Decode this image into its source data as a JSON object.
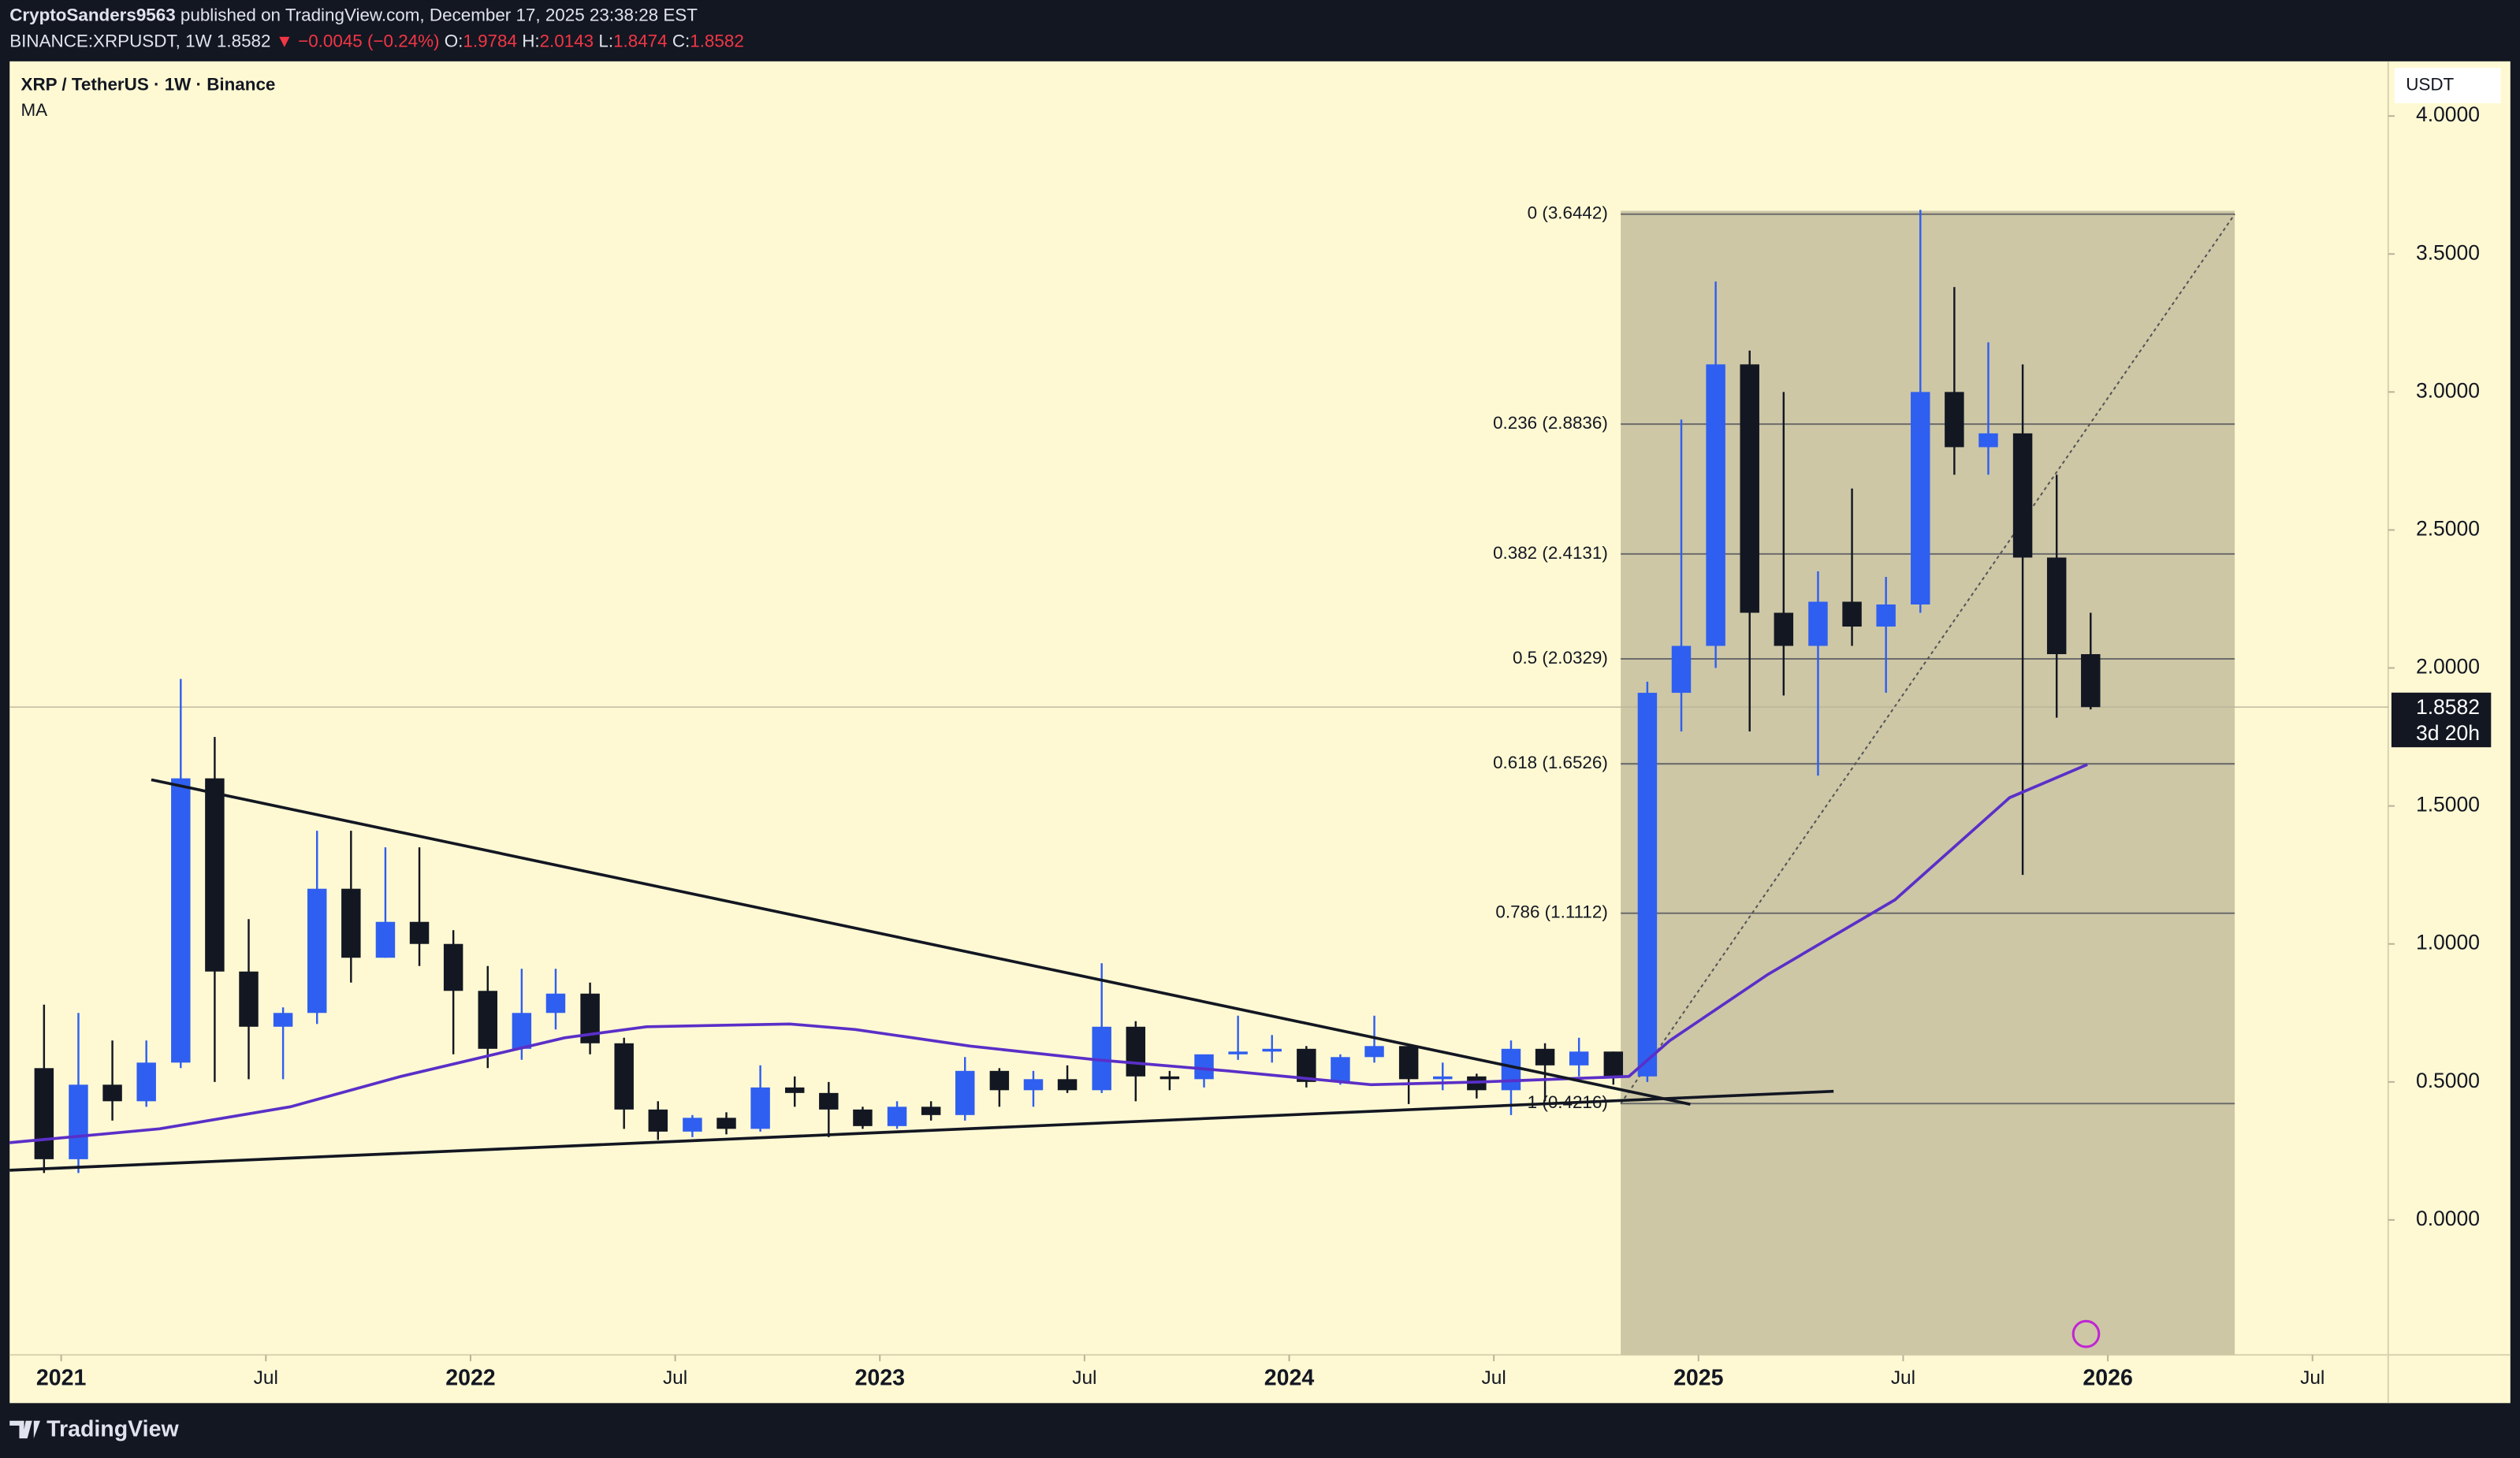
{
  "header": {
    "publisher": "CryptoSanders9563",
    "published": "published on TradingView.com, December 17, 2025 23:38:28 EST",
    "symbol": "BINANCE:XRPUSDT, 1W",
    "last": "1.8582",
    "direction": "▼",
    "change": "−0.0045 (−0.24%)",
    "o_label": "O:",
    "open": "1.9784",
    "h_label": "H:",
    "high": "2.0143",
    "l_label": "L:",
    "low": "1.8474",
    "c_label": "C:",
    "close": "1.8582"
  },
  "footer": {
    "brand": "TradingView"
  },
  "chart_data": {
    "type": "candlestick",
    "title": "XRP / TetherUS · 1W · Binance",
    "indicator": "MA",
    "currency": "USDT",
    "colors": {
      "up": "#2f5ff0",
      "down": "#131722",
      "ma": "#5a2fc8"
    },
    "xlim": [
      2020.874,
      2026.685
    ],
    "xticks": [
      2021,
      {
        "value": 2021.5,
        "label": "Jul"
      },
      2022,
      {
        "value": 2022.5,
        "label": "Jul"
      },
      2023,
      {
        "value": 2023.5,
        "label": "Jul"
      },
      2024,
      {
        "value": 2024.5,
        "label": "Jul"
      },
      2025,
      {
        "value": 2025.5,
        "label": "Jul"
      },
      2026,
      {
        "value": 2026.5,
        "label": "Jul"
      }
    ],
    "ylim": [
      -0.489,
      4.198
    ],
    "yticks": [
      {
        "value": 0,
        "label": "0.0000"
      },
      {
        "value": 0.5,
        "label": "0.5000"
      },
      {
        "value": 1,
        "label": "1.0000"
      },
      {
        "value": 1.5,
        "label": "1.5000"
      },
      {
        "value": 2,
        "label": "2.0000"
      },
      {
        "value": 2.5,
        "label": "2.5000"
      },
      {
        "value": 3,
        "label": "3.0000"
      },
      {
        "value": 3.5,
        "label": "3.5000"
      },
      {
        "value": 4,
        "label": "4.0000"
      }
    ],
    "x": [
      2020.958,
      2021.042,
      2021.125,
      2021.208,
      2021.292,
      2021.375,
      2021.458,
      2021.542,
      2021.625,
      2021.708,
      2021.792,
      2021.875,
      2021.958,
      2022.042,
      2022.125,
      2022.208,
      2022.292,
      2022.375,
      2022.458,
      2022.542,
      2022.625,
      2022.708,
      2022.792,
      2022.875,
      2022.958,
      2023.042,
      2023.125,
      2023.208,
      2023.292,
      2023.375,
      2023.458,
      2023.542,
      2023.625,
      2023.708,
      2023.792,
      2023.875,
      2023.958,
      2024.042,
      2024.125,
      2024.208,
      2024.292,
      2024.375,
      2024.458,
      2024.542,
      2024.625,
      2024.708,
      2024.792,
      2024.875,
      2024.958,
      2025.042,
      2025.125,
      2025.208,
      2025.292,
      2025.375,
      2025.458,
      2025.542,
      2025.625,
      2025.708,
      2025.792,
      2025.875,
      2025.958
    ],
    "open": [
      0.55,
      0.22,
      0.49,
      0.43,
      0.57,
      1.6,
      0.9,
      0.7,
      0.75,
      1.2,
      0.95,
      1.08,
      1.0,
      0.83,
      0.62,
      0.75,
      0.82,
      0.64,
      0.4,
      0.32,
      0.37,
      0.33,
      0.48,
      0.46,
      0.4,
      0.34,
      0.41,
      0.38,
      0.54,
      0.47,
      0.51,
      0.47,
      0.7,
      0.52,
      0.51,
      0.6,
      0.61,
      0.62,
      0.5,
      0.59,
      0.63,
      0.51,
      0.52,
      0.47,
      0.62,
      0.56,
      0.61,
      0.52,
      1.91,
      2.08,
      3.1,
      2.2,
      2.08,
      2.24,
      2.15,
      2.23,
      3.0,
      2.8,
      2.85,
      2.4,
      2.05
    ],
    "high": [
      0.78,
      0.75,
      0.65,
      0.65,
      1.96,
      1.75,
      1.09,
      0.77,
      1.41,
      1.41,
      1.35,
      1.35,
      1.05,
      0.92,
      0.91,
      0.91,
      0.86,
      0.66,
      0.43,
      0.38,
      0.39,
      0.56,
      0.52,
      0.5,
      0.41,
      0.43,
      0.43,
      0.59,
      0.55,
      0.54,
      0.56,
      0.93,
      0.72,
      0.54,
      0.59,
      0.74,
      0.67,
      0.63,
      0.6,
      0.74,
      0.63,
      0.57,
      0.53,
      0.65,
      0.64,
      0.66,
      0.61,
      1.95,
      2.9,
      3.4,
      3.15,
      3.0,
      2.35,
      2.65,
      2.33,
      3.66,
      3.38,
      3.18,
      3.1,
      2.7,
      2.2
    ],
    "low": [
      0.17,
      0.17,
      0.36,
      0.41,
      0.55,
      0.5,
      0.51,
      0.51,
      0.71,
      0.86,
      0.95,
      0.92,
      0.6,
      0.55,
      0.58,
      0.69,
      0.6,
      0.33,
      0.29,
      0.3,
      0.31,
      0.32,
      0.41,
      0.3,
      0.33,
      0.33,
      0.36,
      0.36,
      0.41,
      0.41,
      0.46,
      0.46,
      0.43,
      0.47,
      0.48,
      0.58,
      0.57,
      0.48,
      0.49,
      0.57,
      0.42,
      0.47,
      0.44,
      0.38,
      0.43,
      0.52,
      0.49,
      0.5,
      1.77,
      2.0,
      1.77,
      1.9,
      1.61,
      2.08,
      1.91,
      2.2,
      2.7,
      2.7,
      1.25,
      1.82,
      1.85
    ],
    "close": [
      0.22,
      0.49,
      0.43,
      0.57,
      1.6,
      0.9,
      0.7,
      0.75,
      1.2,
      0.95,
      1.08,
      1.0,
      0.83,
      0.62,
      0.75,
      0.82,
      0.64,
      0.4,
      0.32,
      0.37,
      0.33,
      0.48,
      0.46,
      0.4,
      0.34,
      0.41,
      0.38,
      0.54,
      0.47,
      0.51,
      0.47,
      0.7,
      0.52,
      0.51,
      0.6,
      0.61,
      0.62,
      0.5,
      0.59,
      0.63,
      0.51,
      0.52,
      0.47,
      0.62,
      0.56,
      0.61,
      0.52,
      1.91,
      2.08,
      3.1,
      2.2,
      2.08,
      2.24,
      2.15,
      2.23,
      3.0,
      2.8,
      2.85,
      2.4,
      2.05,
      1.8582
    ],
    "ma": {
      "x": [
        2020.874,
        2021.24,
        2021.56,
        2021.83,
        2022.03,
        2022.23,
        2022.43,
        2022.78,
        2022.94,
        2023.22,
        2023.53,
        2023.85,
        2024.2,
        2024.47,
        2024.83,
        2024.93,
        2025.17,
        2025.48,
        2025.76,
        2025.95
      ],
      "values": [
        0.28,
        0.33,
        0.41,
        0.52,
        0.59,
        0.66,
        0.7,
        0.71,
        0.69,
        0.63,
        0.58,
        0.54,
        0.49,
        0.5,
        0.52,
        0.65,
        0.89,
        1.16,
        1.53,
        1.65
      ]
    },
    "fib_range_x": [
      2024.81,
      2026.31
    ],
    "fib_levels": [
      {
        "value": 3.6442,
        "label": "0 (3.6442)"
      },
      {
        "value": 2.8836,
        "label": "0.236 (2.8836)"
      },
      {
        "value": 2.4131,
        "label": "0.382 (2.4131)"
      },
      {
        "value": 2.0329,
        "label": "0.5 (2.0329)"
      },
      {
        "value": 1.6526,
        "label": "0.618 (1.6526)"
      },
      {
        "value": 1.1112,
        "label": "0.786 (1.1112)"
      },
      {
        "value": 0.4216,
        "label": "1 (0.4216)"
      }
    ],
    "trendlines": [
      {
        "x": [
          2021.22,
          2024.98
        ],
        "y": [
          1.595,
          0.419
        ]
      },
      {
        "x": [
          2020.874,
          2025.33
        ],
        "y": [
          0.18,
          0.466
        ]
      }
    ],
    "last_price": 1.8582,
    "countdown": "3d 20h"
  }
}
